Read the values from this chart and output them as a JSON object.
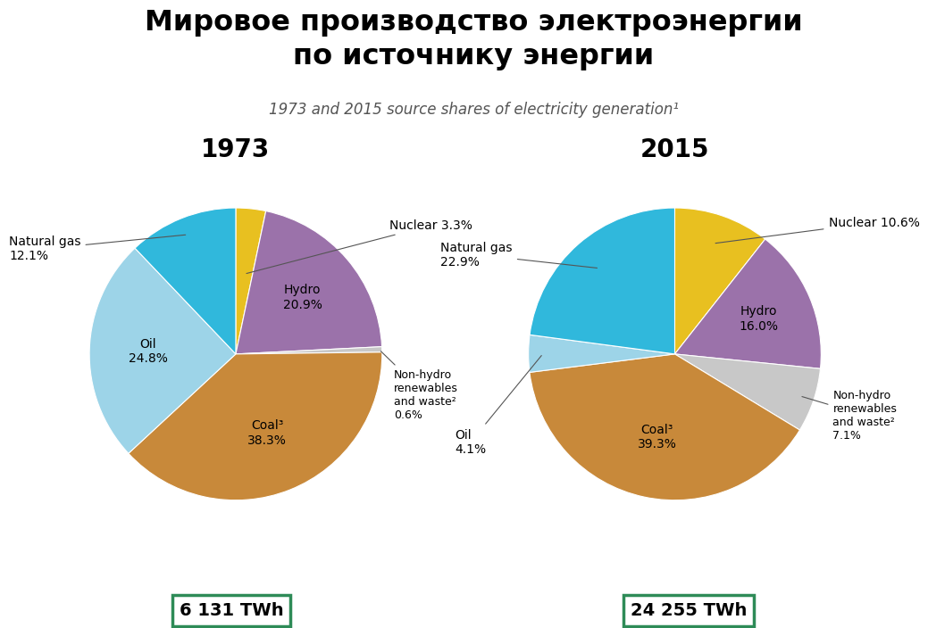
{
  "title_ru": "Мировое производство электроэнергии\nпо источнику энергии",
  "subtitle": "1973 and 2015 source shares of electricity generation¹",
  "year1": "1973",
  "year2": "2015",
  "total1": "6 131 TWh",
  "total2": "24 255 TWh",
  "data_1973": {
    "values": [
      3.3,
      20.9,
      0.6,
      38.3,
      24.8,
      12.1
    ],
    "colors": [
      "#E8C020",
      "#9B72AA",
      "#C8C8C8",
      "#C8893A",
      "#9DD4E8",
      "#30B8DC"
    ]
  },
  "data_2015": {
    "values": [
      10.6,
      16.0,
      7.1,
      39.3,
      4.1,
      22.9
    ],
    "colors": [
      "#E8C020",
      "#9B72AA",
      "#C8C8C8",
      "#C8893A",
      "#9DD4E8",
      "#30B8DC"
    ]
  },
  "line_color": "#2E8B57",
  "box_color": "#2E8B57",
  "background_color": "#FFFFFF"
}
